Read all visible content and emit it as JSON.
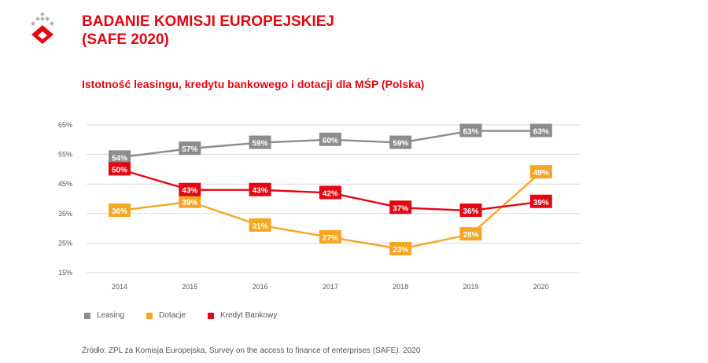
{
  "header": {
    "title_line1": "BADANIE KOMISJI EUROPEJSKIEJ",
    "title_line2": "(SAFE 2020)"
  },
  "colors": {
    "brand": "#e30613",
    "leasing": "#8c8c8c",
    "dotacje": "#f5a623",
    "kredyt": "#e30613"
  },
  "chart_data": {
    "type": "line",
    "title": "Istotność leasingu, kredytu bankowego i dotacji dla MŚP (Polska)",
    "x": [
      "2014",
      "2015",
      "2016",
      "2017",
      "2018",
      "2019",
      "2020"
    ],
    "ylim": [
      15,
      65
    ],
    "yticks": [
      15,
      25,
      35,
      45,
      55,
      65
    ],
    "ytick_labels": [
      "15%",
      "25%",
      "35%",
      "45%",
      "55%",
      "65%"
    ],
    "grid": true,
    "legend_position": "bottom-left",
    "series": [
      {
        "name": "Leasing",
        "color": "#8c8c8c",
        "values": [
          54,
          57,
          59,
          60,
          59,
          63,
          63
        ],
        "labels": [
          "54%",
          "57%",
          "59%",
          "60%",
          "59%",
          "63%",
          "63%"
        ]
      },
      {
        "name": "Dotacje",
        "color": "#f5a623",
        "values": [
          36,
          39,
          31,
          27,
          23,
          28,
          49
        ],
        "labels": [
          "36%",
          "39%",
          "31%",
          "27%",
          "23%",
          "28%",
          "49%"
        ]
      },
      {
        "name": "Kredyt Bankowy",
        "color": "#e30613",
        "values": [
          50,
          43,
          43,
          42,
          37,
          36,
          39
        ],
        "labels": [
          "50%",
          "43%",
          "43%",
          "42%",
          "37%",
          "36%",
          "39%"
        ]
      }
    ]
  },
  "source": "Źródło: ZPL za Komisja Europejska, Survey on the access to finance of enterprises (SAFE). 2020"
}
